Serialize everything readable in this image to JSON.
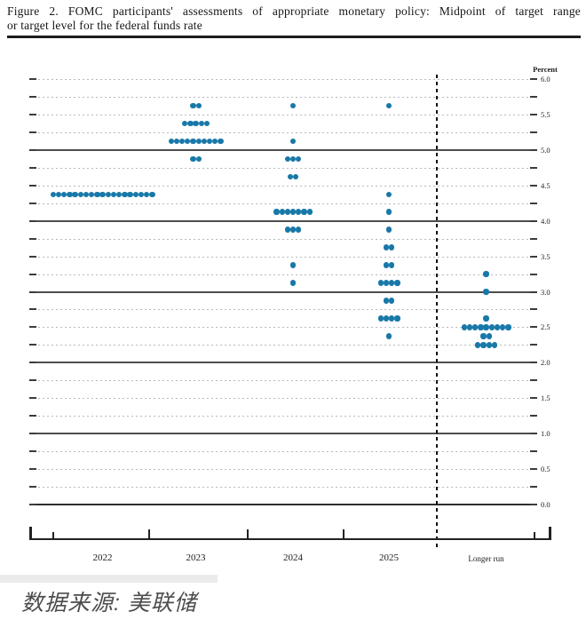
{
  "header": {
    "title_line1": "Figure 2.  FOMC participants' assessments of appropriate monetary policy:  Midpoint of target range",
    "title_line2": "or target level for the federal funds rate"
  },
  "chart_data": {
    "type": "scatter",
    "subtype": "fomc-dot-plot",
    "title": "FOMC participants' assessments of appropriate monetary policy: Midpoint of target range or target level for the federal funds rate",
    "ylabel": "Percent",
    "ylim": [
      0.0,
      6.0
    ],
    "gridline_step": 0.25,
    "solid_gridlines": [
      1.0,
      2.0,
      3.0,
      4.0,
      5.0
    ],
    "zero_line": 0.0,
    "y_tick_labels": [
      "6.0",
      "5.5",
      "5.0",
      "4.5",
      "4.0",
      "3.5",
      "3.0",
      "2.5",
      "2.0",
      "1.5",
      "1.0",
      "0.5",
      "0.0"
    ],
    "categories": [
      "2022",
      "2023",
      "2024",
      "2025",
      "Longer run"
    ],
    "series": [
      {
        "name": "2022",
        "dots": [
          {
            "rate": 4.375,
            "count": 19
          }
        ]
      },
      {
        "name": "2023",
        "dots": [
          {
            "rate": 5.625,
            "count": 2
          },
          {
            "rate": 5.375,
            "count": 5
          },
          {
            "rate": 5.125,
            "count": 10
          },
          {
            "rate": 4.875,
            "count": 2
          }
        ]
      },
      {
        "name": "2024",
        "dots": [
          {
            "rate": 5.625,
            "count": 1
          },
          {
            "rate": 5.125,
            "count": 1
          },
          {
            "rate": 4.875,
            "count": 3
          },
          {
            "rate": 4.625,
            "count": 2
          },
          {
            "rate": 4.125,
            "count": 7
          },
          {
            "rate": 3.875,
            "count": 3
          },
          {
            "rate": 3.375,
            "count": 1
          },
          {
            "rate": 3.125,
            "count": 1
          }
        ]
      },
      {
        "name": "2025",
        "dots": [
          {
            "rate": 5.625,
            "count": 1
          },
          {
            "rate": 4.375,
            "count": 1
          },
          {
            "rate": 4.125,
            "count": 1
          },
          {
            "rate": 3.875,
            "count": 1
          },
          {
            "rate": 3.625,
            "count": 2
          },
          {
            "rate": 3.375,
            "count": 2
          },
          {
            "rate": 3.125,
            "count": 4
          },
          {
            "rate": 2.875,
            "count": 2
          },
          {
            "rate": 2.625,
            "count": 4
          },
          {
            "rate": 2.375,
            "count": 1
          }
        ]
      },
      {
        "name": "Longer run",
        "dots": [
          {
            "rate": 3.25,
            "count": 1
          },
          {
            "rate": 3.0,
            "count": 1
          },
          {
            "rate": 2.625,
            "count": 1
          },
          {
            "rate": 2.5,
            "count": 9
          },
          {
            "rate": 2.375,
            "count": 2
          },
          {
            "rate": 2.25,
            "count": 4
          }
        ]
      }
    ],
    "dot_color": "#1878a8",
    "grid": true,
    "legend_position": "none",
    "separator_after_category": "2025"
  },
  "footer": {
    "caption": "数据来源: 美联储"
  }
}
